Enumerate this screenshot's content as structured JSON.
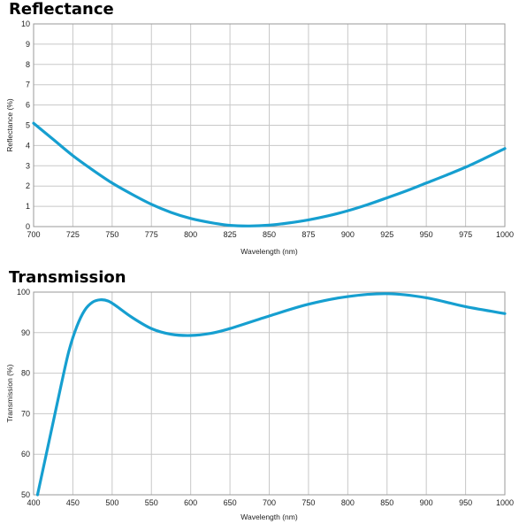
{
  "chart_data": [
    {
      "type": "line",
      "title": "Reflectance",
      "xlabel": "Wavelength (nm)",
      "ylabel": "Reflectance (%)",
      "xlim": [
        700,
        1000
      ],
      "ylim": [
        0,
        10
      ],
      "xticks": [
        700,
        725,
        750,
        775,
        800,
        825,
        850,
        875,
        900,
        925,
        950,
        975,
        1000
      ],
      "yticks": [
        0,
        1,
        2,
        3,
        4,
        5,
        6,
        7,
        8,
        9,
        10
      ],
      "grid": true,
      "line_color": "#169FD0",
      "series": [
        {
          "x": [
            700,
            712.5,
            725,
            737.5,
            750,
            762.5,
            775,
            787.5,
            800,
            812.5,
            825,
            837.5,
            850,
            862.5,
            875,
            887.5,
            900,
            912.5,
            925,
            937.5,
            950,
            962.5,
            975,
            987.5,
            1000
          ],
          "y": [
            5.1,
            4.3,
            3.5,
            2.8,
            2.15,
            1.6,
            1.1,
            0.7,
            0.4,
            0.2,
            0.06,
            0.03,
            0.07,
            0.18,
            0.33,
            0.53,
            0.78,
            1.08,
            1.42,
            1.77,
            2.15,
            2.53,
            2.93,
            3.38,
            3.85
          ]
        }
      ]
    },
    {
      "type": "line",
      "title": "Transmission",
      "xlabel": "Wavelength (nm)",
      "ylabel": "Transmission (%)",
      "xlim": [
        400,
        1000
      ],
      "ylim": [
        50,
        100
      ],
      "xticks": [
        400,
        450,
        500,
        550,
        600,
        650,
        700,
        750,
        800,
        850,
        900,
        950,
        1000
      ],
      "yticks": [
        50,
        60,
        70,
        80,
        90,
        100
      ],
      "grid": true,
      "line_color": "#169FD0",
      "series": [
        {
          "x": [
            405,
            415,
            425,
            435,
            445,
            455,
            465,
            475,
            485,
            495,
            505,
            525,
            550,
            575,
            600,
            625,
            650,
            700,
            750,
            800,
            850,
            900,
            950,
            1000
          ],
          "y": [
            50,
            59,
            68,
            77,
            85.5,
            91.5,
            95.5,
            97.5,
            98.1,
            97.8,
            96.6,
            93.8,
            91,
            89.6,
            89.3,
            89.8,
            91,
            94.1,
            97,
            98.9,
            99.6,
            98.6,
            96.4,
            94.7
          ]
        }
      ]
    }
  ]
}
